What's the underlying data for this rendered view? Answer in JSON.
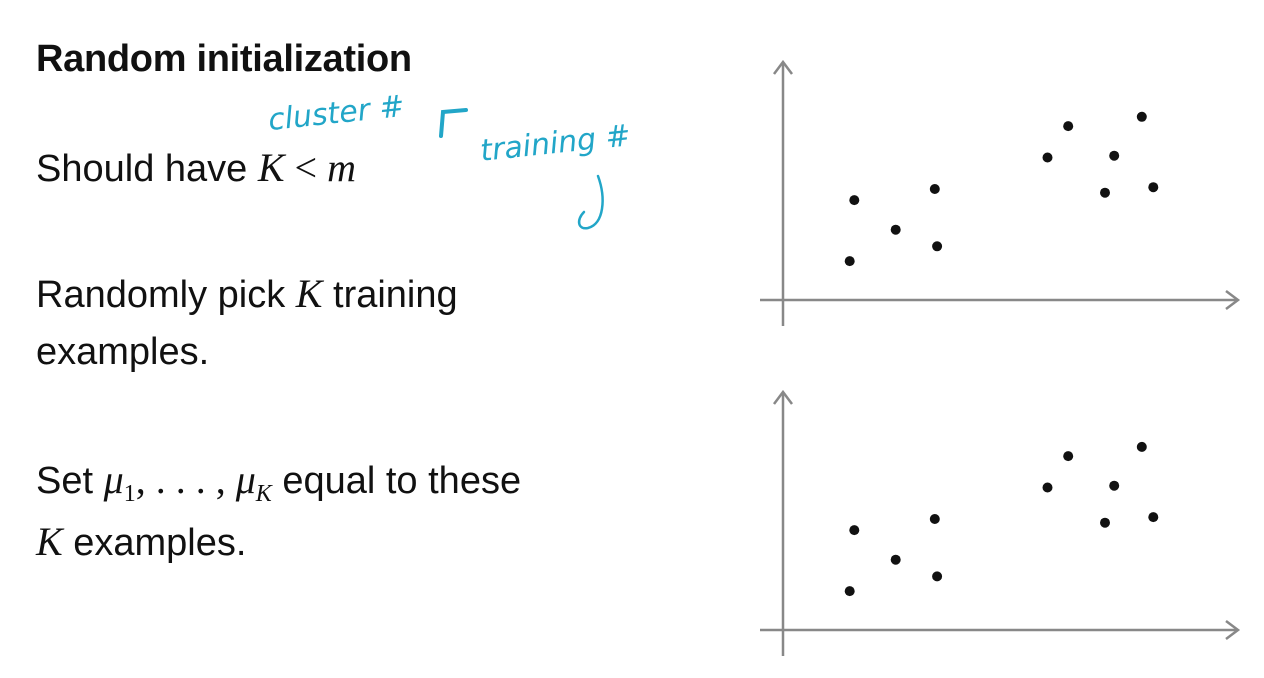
{
  "title": "Random initialization",
  "lines": {
    "l1_text": "Should have ",
    "l1_math_k": "K",
    "l1_math_lt": " < ",
    "l1_math_m": "m",
    "l2_a": "Randomly pick ",
    "l2_k": "K",
    "l2_b": " training",
    "l2_c": "examples.",
    "l3_a": "Set ",
    "l3_mu1": "μ",
    "l3_sub1": "1",
    "l3_dots": ", . . . , ",
    "l3_muk": "μ",
    "l3_subk": "K",
    "l3_b": " equal to these",
    "l3_k": "K",
    "l3_c": " examples."
  },
  "annotations": {
    "cluster": "cluster #",
    "training": "training #"
  },
  "colors": {
    "ink": "#111111",
    "axis": "#888888",
    "annotation": "#22a6c8"
  },
  "chart_data": [
    {
      "type": "scatter",
      "title": "",
      "xlabel": "",
      "ylabel": "",
      "xlim": [
        0,
        10
      ],
      "ylim": [
        0,
        10
      ],
      "grid": false,
      "x": [
        1.55,
        2.45,
        3.3,
        1.45,
        3.35,
        5.75,
        6.2,
        7.2,
        7.0,
        7.8,
        8.05
      ],
      "y": [
        5.4,
        3.8,
        6.0,
        2.1,
        2.9,
        7.7,
        9.4,
        7.8,
        5.8,
        9.9,
        6.1
      ]
    },
    {
      "type": "scatter",
      "title": "",
      "xlabel": "",
      "ylabel": "",
      "xlim": [
        0,
        10
      ],
      "ylim": [
        0,
        10
      ],
      "grid": false,
      "x": [
        1.55,
        2.45,
        3.3,
        1.45,
        3.35,
        5.75,
        6.2,
        7.2,
        7.0,
        7.8,
        8.05
      ],
      "y": [
        5.4,
        3.8,
        6.0,
        2.1,
        2.9,
        7.7,
        9.4,
        7.8,
        5.8,
        9.9,
        6.1
      ]
    }
  ]
}
